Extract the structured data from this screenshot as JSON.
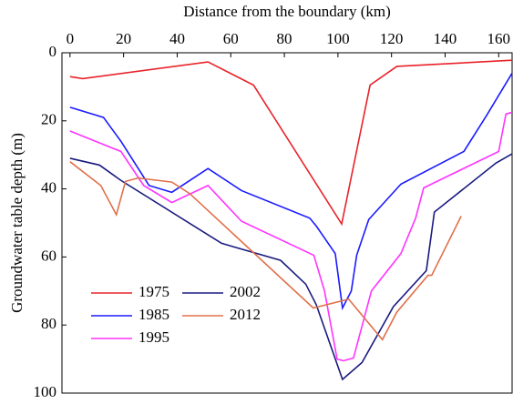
{
  "chart_data": {
    "type": "line",
    "x_label": "Distance from the boundary (km)",
    "y_label": "Groundwater table depth (m)",
    "xlim": [
      -3,
      165
    ],
    "xticks": [
      0,
      20,
      40,
      60,
      80,
      100,
      120,
      140,
      160
    ],
    "ylim": [
      0,
      100
    ],
    "yticks": [
      0,
      20,
      40,
      60,
      80,
      100
    ],
    "y_inverted": true,
    "x_axis_position": "top",
    "legend": "lower left",
    "series": [
      {
        "name": "1975",
        "color": "#e8232a",
        "x": [
          0,
          4.7,
          51.5,
          68.5,
          101.4,
          112,
          122,
          165
        ],
        "values": [
          7,
          7.6,
          2.7,
          9.5,
          50.3,
          9.5,
          4,
          2.2
        ]
      },
      {
        "name": "1985",
        "color": "#1a1aff",
        "x": [
          0,
          12.5,
          19,
          29.5,
          38,
          51.5,
          64,
          89.5,
          92,
          99,
          101.7,
          105,
          107,
          111.5,
          123.5,
          147,
          155.5,
          165
        ],
        "values": [
          16,
          19,
          26,
          39,
          41,
          34,
          40.5,
          48.6,
          51,
          59,
          75,
          70,
          59.5,
          49,
          38.6,
          29,
          18.4,
          6
        ]
      },
      {
        "name": "1995",
        "color": "#ff33ff",
        "x": [
          0,
          19,
          27.5,
          38,
          51.5,
          64,
          91,
          95,
          99.7,
          102,
          105.8,
          112.5,
          123.5,
          129,
          132,
          160,
          162.7,
          165
        ],
        "values": [
          23,
          29,
          39,
          44,
          39,
          49.5,
          59.5,
          70,
          90,
          90.5,
          89.7,
          70,
          59,
          48.6,
          39.7,
          29,
          18,
          17.5
        ]
      },
      {
        "name": "2002",
        "color": "#1a1a80",
        "x": [
          0,
          11,
          19,
          56.6,
          78.6,
          88,
          91.9,
          101.7,
          109,
          120.7,
          133,
          136,
          159,
          165
        ],
        "values": [
          31,
          33,
          37.5,
          56,
          61,
          68,
          74,
          96,
          91,
          74.6,
          64,
          46.8,
          32.4,
          29.7
        ]
      },
      {
        "name": "2012",
        "color": "#e0704a",
        "x": [
          0,
          11.5,
          17.3,
          20.7,
          25.4,
          38,
          44.7,
          90.8,
          104,
          116.6,
          122,
          133.6,
          135,
          146
        ],
        "values": [
          32,
          39,
          47.6,
          37.8,
          36.8,
          38,
          41.4,
          75,
          72.4,
          84.3,
          76.2,
          65.4,
          65.4,
          48
        ]
      }
    ]
  }
}
